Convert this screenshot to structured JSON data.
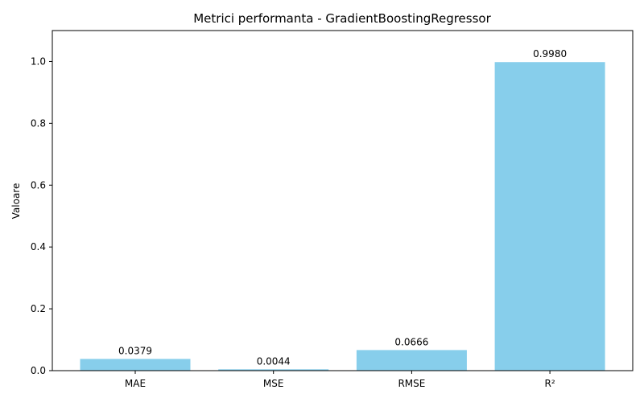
{
  "chart_data": {
    "type": "bar",
    "title": "Metrici performanta - GradientBoostingRegressor",
    "xlabel": "",
    "ylabel": "Valoare",
    "categories": [
      "MAE",
      "MSE",
      "RMSE",
      "R²"
    ],
    "values": [
      0.0379,
      0.0044,
      0.0666,
      0.998
    ],
    "data_labels": [
      "0.0379",
      "0.0044",
      "0.0666",
      "0.9980"
    ],
    "yticks": [
      0.0,
      0.2,
      0.4,
      0.6,
      0.8,
      1.0
    ],
    "ytick_labels": [
      "0.0",
      "0.2",
      "0.4",
      "0.6",
      "0.8",
      "1.0"
    ],
    "ylim": [
      0,
      1.1
    ],
    "grid": false,
    "bar_color": "#87ceeb"
  }
}
